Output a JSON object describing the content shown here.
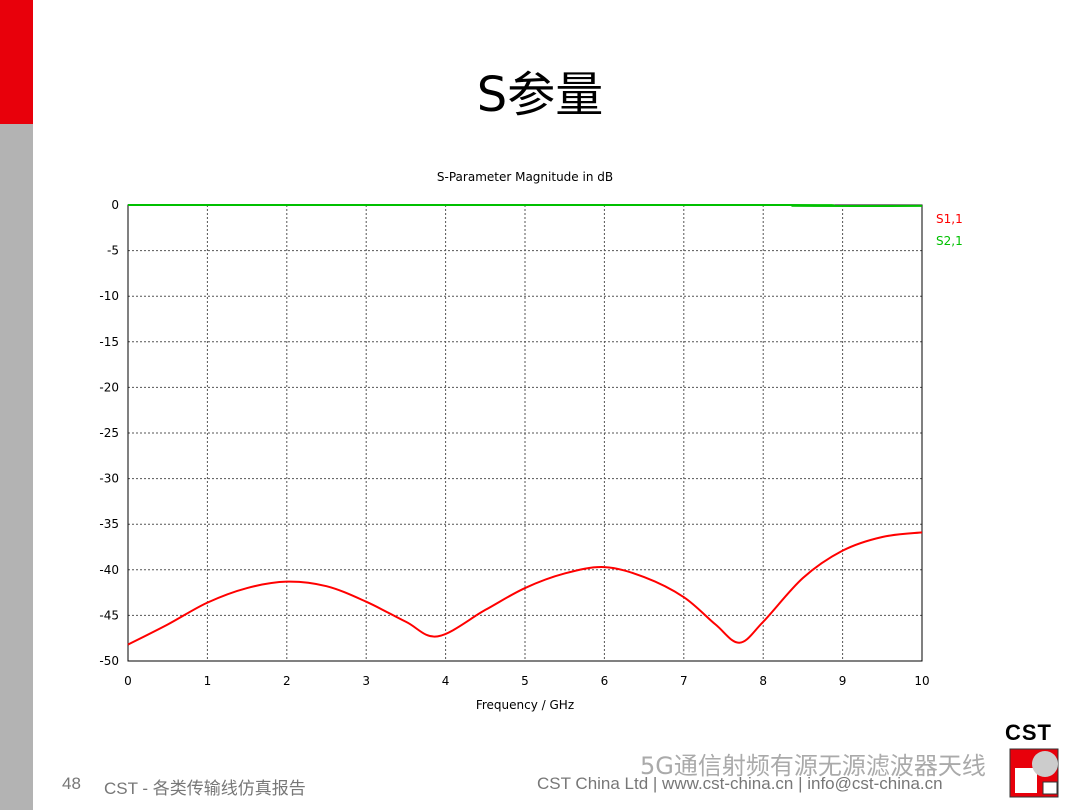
{
  "slide": {
    "title": "S参量",
    "page_number": "48",
    "footer_left": "CST - 各类传输线仿真报告",
    "footer_right": "CST China Ltd | www.cst-china.cn | info@cst-china.cn",
    "watermark": "5G通信射频有源无源滤波器天线",
    "logo": "CST",
    "accent_color": "#e8000b"
  },
  "chart_data": {
    "type": "line",
    "title": "S-Parameter Magnitude in dB",
    "xlabel": "Frequency / GHz",
    "ylabel": "",
    "xlim": [
      0,
      10
    ],
    "ylim": [
      -50,
      0
    ],
    "xticks": [
      "0",
      "1",
      "2",
      "3",
      "4",
      "5",
      "6",
      "7",
      "8",
      "9",
      "10"
    ],
    "yticks": [
      "0",
      "-5",
      "-10",
      "-15",
      "-20",
      "-25",
      "-30",
      "-35",
      "-40",
      "-45",
      "-50"
    ],
    "grid": true,
    "legend": "top-right",
    "series": [
      {
        "name": "S1,1",
        "color": "#ff0000",
        "x": [
          0,
          0.5,
          1,
          1.5,
          2,
          2.5,
          3,
          3.5,
          3.9,
          4.5,
          5,
          5.5,
          6,
          6.5,
          7,
          7.4,
          7.7,
          8,
          8.5,
          9,
          9.5,
          10
        ],
        "y": [
          -48.2,
          -46,
          -43.6,
          -42,
          -41.3,
          -41.8,
          -43.5,
          -45.7,
          -47.3,
          -44.4,
          -42,
          -40.4,
          -39.7,
          -40.8,
          -43,
          -46,
          -48,
          -45.7,
          -40.9,
          -37.9,
          -36.4,
          -35.9
        ]
      },
      {
        "name": "S2,1",
        "color": "#00c000",
        "x": [
          0,
          8.3,
          8.4,
          10
        ],
        "y": [
          0,
          0,
          -0.1,
          -0.1
        ]
      }
    ]
  }
}
